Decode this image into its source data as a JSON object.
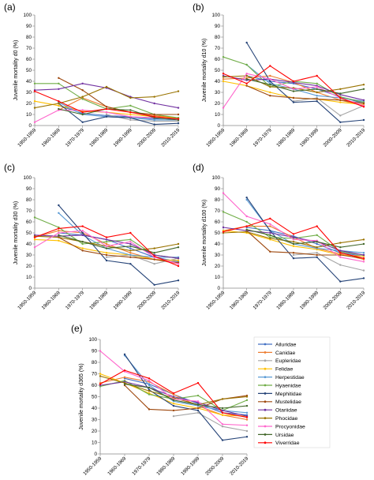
{
  "figure": {
    "series_colors": {
      "Ailuridae": "#4472c4",
      "Canidae": "#ed7d31",
      "Eupleridae": "#a5a5a5",
      "Felidae": "#ffc000",
      "Herpestidae": "#5b9bd5",
      "Hyaenidae": "#70ad47",
      "Mephitidae": "#264478",
      "Mustelidae": "#9e480e",
      "Otariidae": "#7030a0",
      "Phocidae": "#997300",
      "Procyonidae": "#ff66cc",
      "Ursidae": "#43682b",
      "Viverridae": "#ff0000"
    },
    "legend": [
      "Ailuridae",
      "Canidae",
      "Eupleridae",
      "Felidae",
      "Herpestidae",
      "Hyaenidae",
      "Mephitidae",
      "Mustelidae",
      "Otariidae",
      "Phocidae",
      "Procyonidae",
      "Ursidae",
      "Viverridae"
    ]
  },
  "chart_data": [
    {
      "type": "line",
      "panel": "(a)",
      "ylabel": "Juvenile mortality d0 (%)",
      "ylim": [
        0,
        100
      ],
      "yticks": [
        0,
        10,
        20,
        30,
        40,
        50,
        60,
        70,
        80,
        90,
        100
      ],
      "categories": [
        "1950-1959",
        "1960-1969",
        "1970-1979",
        "1980-1989",
        "1990-1999",
        "2000-2009",
        "2010-2019"
      ],
      "grid": false,
      "series": [
        {
          "name": "Ailuridae",
          "values": [
            null,
            18,
            11,
            9,
            8,
            6,
            6
          ]
        },
        {
          "name": "Canidae",
          "values": [
            null,
            14,
            25,
            17,
            12,
            9,
            7
          ]
        },
        {
          "name": "Eupleridae",
          "values": [
            null,
            null,
            null,
            10,
            5,
            4,
            4
          ]
        },
        {
          "name": "Felidae",
          "values": [
            22,
            18,
            13,
            12,
            10,
            8,
            7
          ]
        },
        {
          "name": "Herpestidae",
          "values": [
            null,
            21,
            10,
            8,
            7,
            5,
            5
          ]
        },
        {
          "name": "Hyaenidae",
          "values": [
            38,
            38,
            24,
            15,
            18,
            10,
            7
          ]
        },
        {
          "name": "Mephitidae",
          "values": [
            null,
            20,
            3,
            8,
            7,
            1,
            2
          ]
        },
        {
          "name": "Mustelidae",
          "values": [
            null,
            43,
            32,
            17,
            12,
            10,
            10
          ]
        },
        {
          "name": "Otariidae",
          "values": [
            32,
            33,
            38,
            34,
            26,
            20,
            16
          ]
        },
        {
          "name": "Phocidae",
          "values": [
            16,
            20,
            26,
            35,
            25,
            26,
            31
          ]
        },
        {
          "name": "Procyonidae",
          "values": [
            3,
            14,
            14,
            12,
            8,
            7,
            5
          ]
        },
        {
          "name": "Ursidae",
          "values": [
            null,
            15,
            10,
            15,
            14,
            7,
            5
          ]
        },
        {
          "name": "Viverridae",
          "values": [
            31,
            22,
            12,
            15,
            12,
            8,
            6
          ]
        }
      ]
    },
    {
      "type": "line",
      "panel": "(b)",
      "ylabel": "Juvenile mortality d10 (%)",
      "ylim": [
        0,
        100
      ],
      "yticks": [
        0,
        10,
        20,
        30,
        40,
        50,
        60,
        70,
        80,
        90,
        100
      ],
      "categories": [
        "1950-1959",
        "1960-1969",
        "1970-1979",
        "1980-1989",
        "1990-1999",
        "2000-2009",
        "2010-2019"
      ],
      "grid": false,
      "series": [
        {
          "name": "Ailuridae",
          "values": [
            null,
            45,
            40,
            38,
            33,
            26,
            20
          ]
        },
        {
          "name": "Canidae",
          "values": [
            42,
            43,
            45,
            39,
            30,
            23,
            18
          ]
        },
        {
          "name": "Eupleridae",
          "values": [
            null,
            null,
            null,
            22,
            25,
            9,
            18
          ]
        },
        {
          "name": "Felidae",
          "values": [
            40,
            36,
            30,
            25,
            24,
            21,
            19
          ]
        },
        {
          "name": "Herpestidae",
          "values": [
            null,
            55,
            38,
            33,
            27,
            25,
            22
          ]
        },
        {
          "name": "Hyaenidae",
          "values": [
            62,
            55,
            35,
            40,
            38,
            26,
            21
          ]
        },
        {
          "name": "Mephitidae",
          "values": [
            null,
            75,
            40,
            21,
            22,
            3,
            5
          ]
        },
        {
          "name": "Mustelidae",
          "values": [
            null,
            36,
            27,
            25,
            24,
            23,
            20
          ]
        },
        {
          "name": "Otariidae",
          "values": [
            45,
            41,
            42,
            39,
            36,
            28,
            23
          ]
        },
        {
          "name": "Phocidae",
          "values": [
            44,
            45,
            35,
            34,
            30,
            33,
            37
          ]
        },
        {
          "name": "Procyonidae",
          "values": [
            16,
            47,
            42,
            33,
            35,
            25,
            18
          ]
        },
        {
          "name": "Ursidae",
          "values": [
            null,
            42,
            37,
            31,
            33,
            29,
            33
          ]
        },
        {
          "name": "Viverridae",
          "values": [
            47,
            38,
            54,
            40,
            45,
            25,
            17
          ]
        }
      ]
    },
    {
      "type": "line",
      "panel": "(c)",
      "ylabel": "Juvenile mortality d30 (%)",
      "ylim": [
        0,
        100
      ],
      "yticks": [
        0,
        10,
        20,
        30,
        40,
        50,
        60,
        70,
        80,
        90,
        100
      ],
      "categories": [
        "1950-1959",
        "1960-1969",
        "1970-1979",
        "1980-1989",
        "1990-1999",
        "2000-2009",
        "2010-2019"
      ],
      "grid": false,
      "series": [
        {
          "name": "Ailuridae",
          "values": [
            null,
            50,
            48,
            44,
            36,
            28,
            24
          ]
        },
        {
          "name": "Canidae",
          "values": [
            46,
            52,
            50,
            40,
            32,
            26,
            22
          ]
        },
        {
          "name": "Eupleridae",
          "values": [
            null,
            null,
            null,
            28,
            30,
            22,
            27
          ]
        },
        {
          "name": "Felidae",
          "values": [
            44,
            43,
            36,
            32,
            30,
            26,
            25
          ]
        },
        {
          "name": "Herpestidae",
          "values": [
            null,
            68,
            48,
            36,
            30,
            28,
            28
          ]
        },
        {
          "name": "Hyaenidae",
          "values": [
            64,
            55,
            40,
            42,
            44,
            30,
            27
          ]
        },
        {
          "name": "Mephitidae",
          "values": [
            null,
            75,
            50,
            25,
            22,
            3,
            7
          ]
        },
        {
          "name": "Mustelidae",
          "values": [
            null,
            46,
            34,
            30,
            28,
            26,
            23
          ]
        },
        {
          "name": "Otariidae",
          "values": [
            48,
            47,
            48,
            44,
            40,
            30,
            27
          ]
        },
        {
          "name": "Phocidae",
          "values": [
            47,
            46,
            42,
            38,
            34,
            36,
            40
          ]
        },
        {
          "name": "Procyonidae",
          "values": [
            37,
            50,
            52,
            38,
            42,
            28,
            22
          ]
        },
        {
          "name": "Ursidae",
          "values": [
            null,
            48,
            42,
            36,
            38,
            32,
            37
          ]
        },
        {
          "name": "Viverridae",
          "values": [
            46,
            54,
            56,
            46,
            50,
            29,
            20
          ]
        }
      ]
    },
    {
      "type": "line",
      "panel": "(d)",
      "ylabel": "Juvenile mortality d100 (%)",
      "ylim": [
        0,
        100
      ],
      "yticks": [
        0,
        10,
        20,
        30,
        40,
        50,
        60,
        70,
        80,
        90,
        100
      ],
      "categories": [
        "1950-1959",
        "1960-1969",
        "1970-1979",
        "1980-1989",
        "1990-1999",
        "2000-2009",
        "2010-2019"
      ],
      "grid": false,
      "series": [
        {
          "name": "Ailuridae",
          "values": [
            null,
            55,
            52,
            47,
            40,
            32,
            29
          ]
        },
        {
          "name": "Canidae",
          "values": [
            52,
            56,
            56,
            46,
            36,
            31,
            26
          ]
        },
        {
          "name": "Eupleridae",
          "values": [
            null,
            null,
            null,
            30,
            32,
            21,
            16
          ]
        },
        {
          "name": "Felidae",
          "values": [
            52,
            50,
            44,
            38,
            35,
            30,
            29
          ]
        },
        {
          "name": "Herpestidae",
          "values": [
            null,
            80,
            52,
            40,
            36,
            34,
            32
          ]
        },
        {
          "name": "Hyaenidae",
          "values": [
            69,
            60,
            46,
            45,
            48,
            33,
            30
          ]
        },
        {
          "name": "Mephitidae",
          "values": [
            null,
            82,
            52,
            27,
            28,
            6,
            9
          ]
        },
        {
          "name": "Mustelidae",
          "values": [
            null,
            52,
            33,
            32,
            30,
            30,
            27
          ]
        },
        {
          "name": "Otariidae",
          "values": [
            55,
            52,
            50,
            46,
            42,
            34,
            30
          ]
        },
        {
          "name": "Phocidae",
          "values": [
            50,
            51,
            45,
            42,
            37,
            41,
            44
          ]
        },
        {
          "name": "Procyonidae",
          "values": [
            86,
            65,
            58,
            44,
            43,
            28,
            24
          ]
        },
        {
          "name": "Ursidae",
          "values": [
            null,
            53,
            48,
            40,
            42,
            37,
            40
          ]
        },
        {
          "name": "Viverridae",
          "values": [
            51,
            56,
            63,
            49,
            56,
            32,
            27
          ]
        }
      ]
    },
    {
      "type": "line",
      "panel": "(e)",
      "ylabel": "Juvenile mortality d365 (%)",
      "ylim": [
        0,
        100
      ],
      "yticks": [
        0,
        10,
        20,
        30,
        40,
        50,
        60,
        70,
        80,
        90,
        100
      ],
      "categories": [
        "1950-1959",
        "1960-1969",
        "1970-1979",
        "1980-1989",
        "1990-1999",
        "2000-2009",
        "2010-2019"
      ],
      "grid": false,
      "series": [
        {
          "name": "Ailuridae",
          "values": [
            null,
            66,
            61,
            52,
            44,
            36,
            34
          ]
        },
        {
          "name": "Canidae",
          "values": [
            62,
            67,
            63,
            52,
            42,
            34,
            30
          ]
        },
        {
          "name": "Eupleridae",
          "values": [
            null,
            null,
            null,
            33,
            36,
            24,
            20
          ]
        },
        {
          "name": "Felidae",
          "values": [
            70,
            62,
            53,
            44,
            40,
            34,
            33
          ]
        },
        {
          "name": "Herpestidae",
          "values": [
            null,
            86,
            60,
            46,
            42,
            38,
            36
          ]
        },
        {
          "name": "Hyaenidae",
          "values": [
            59,
            64,
            52,
            48,
            51,
            38,
            47
          ]
        },
        {
          "name": "Mephitidae",
          "values": [
            null,
            87,
            56,
            42,
            38,
            12,
            15
          ]
        },
        {
          "name": "Mustelidae",
          "values": [
            null,
            60,
            39,
            38,
            40,
            48,
            51
          ]
        },
        {
          "name": "Otariidae",
          "values": [
            60,
            63,
            58,
            50,
            45,
            38,
            33
          ]
        },
        {
          "name": "Phocidae",
          "values": [
            68,
            62,
            55,
            49,
            43,
            48,
            50
          ]
        },
        {
          "name": "Procyonidae",
          "values": [
            90,
            72,
            64,
            48,
            46,
            26,
            25
          ]
        },
        {
          "name": "Ursidae",
          "values": [
            null,
            61,
            58,
            47,
            43,
            40,
            42
          ]
        },
        {
          "name": "Viverridae",
          "values": [
            61,
            73,
            66,
            53,
            62,
            36,
            32
          ]
        }
      ]
    }
  ]
}
